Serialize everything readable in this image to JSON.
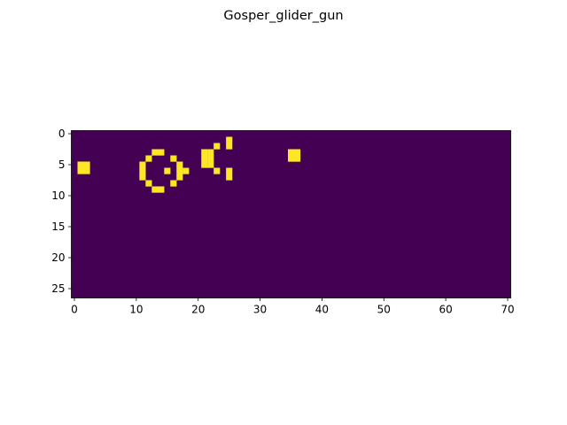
{
  "chart_data": {
    "type": "heatmap",
    "title": "Gosper_glider_gun",
    "xlabel": "",
    "ylabel": "",
    "grid": false,
    "colormap": "viridis",
    "colors": {
      "dead": "#440154",
      "alive": "#fde725",
      "background": "#ffffff",
      "axis": "#000000"
    },
    "shape": {
      "rows": 27,
      "cols": 71
    },
    "xlim": [
      -0.5,
      70.5
    ],
    "ylim": [
      26.5,
      -0.5
    ],
    "x_ticks": [
      0,
      10,
      20,
      30,
      40,
      50,
      60,
      70
    ],
    "y_ticks": [
      0,
      5,
      10,
      15,
      20,
      25
    ],
    "values": "0 for every cell except the alive cells listed in alive_cells",
    "alive_cells": [
      [
        5,
        1
      ],
      [
        5,
        2
      ],
      [
        6,
        1
      ],
      [
        6,
        2
      ],
      [
        5,
        11
      ],
      [
        6,
        11
      ],
      [
        7,
        11
      ],
      [
        4,
        12
      ],
      [
        8,
        12
      ],
      [
        3,
        13
      ],
      [
        9,
        13
      ],
      [
        3,
        14
      ],
      [
        9,
        14
      ],
      [
        6,
        15
      ],
      [
        4,
        16
      ],
      [
        8,
        16
      ],
      [
        5,
        17
      ],
      [
        6,
        17
      ],
      [
        7,
        17
      ],
      [
        6,
        18
      ],
      [
        3,
        21
      ],
      [
        4,
        21
      ],
      [
        5,
        21
      ],
      [
        3,
        22
      ],
      [
        4,
        22
      ],
      [
        5,
        22
      ],
      [
        2,
        23
      ],
      [
        6,
        23
      ],
      [
        1,
        25
      ],
      [
        2,
        25
      ],
      [
        6,
        25
      ],
      [
        7,
        25
      ],
      [
        3,
        35
      ],
      [
        3,
        36
      ],
      [
        4,
        35
      ],
      [
        4,
        36
      ]
    ]
  }
}
